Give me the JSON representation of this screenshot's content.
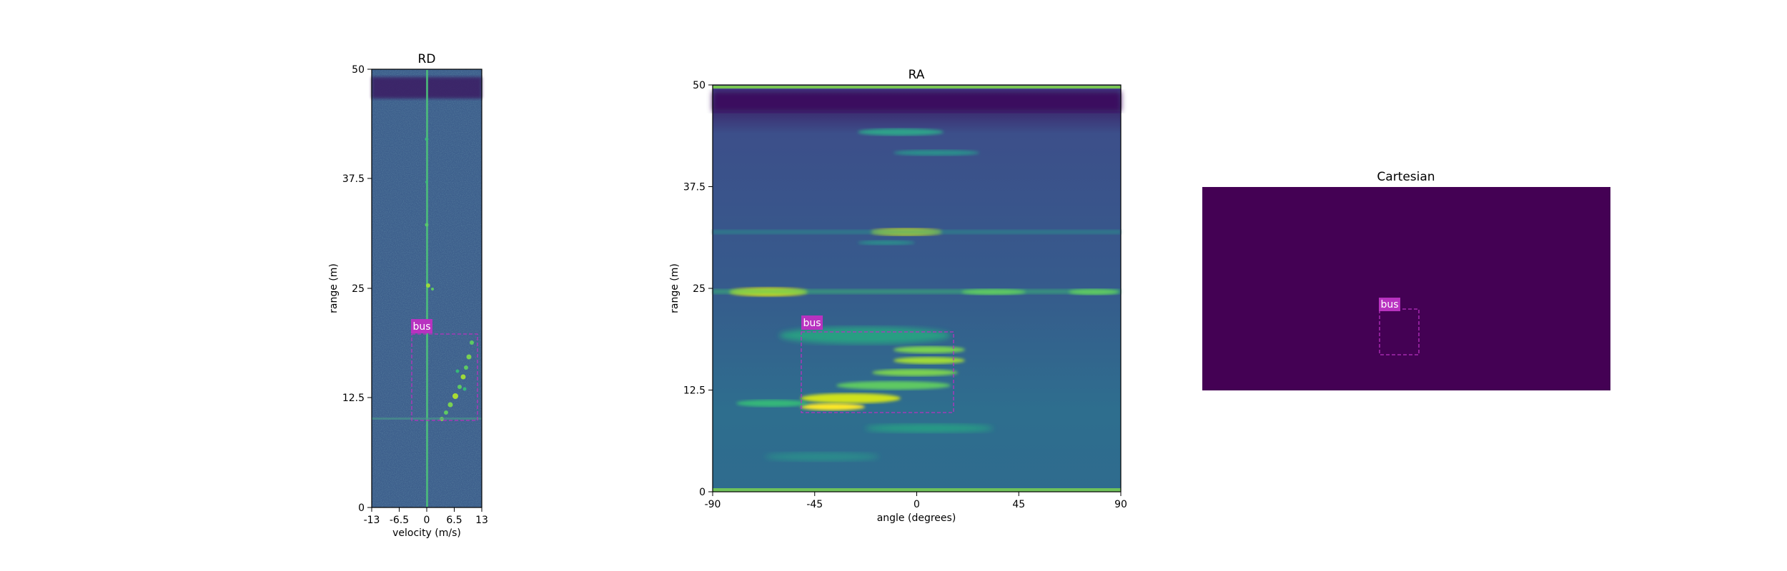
{
  "chart_data": [
    {
      "type": "heatmap",
      "title": "RD",
      "xlabel": "velocity (m/s)",
      "ylabel": "range (m)",
      "xlim": [
        -13,
        13
      ],
      "ylim": [
        0,
        50
      ],
      "xticks": [
        "-13",
        "-6.5",
        "0",
        "6.5",
        "13"
      ],
      "yticks": [
        "0",
        "12.5",
        "25",
        "37.5",
        "50"
      ],
      "colormap": "viridis",
      "annotations": [
        {
          "label": "bus",
          "x_range": [
            -3.9,
            12.0
          ],
          "y_range": [
            10.0,
            20.0
          ],
          "color": "#b832c0"
        }
      ]
    },
    {
      "type": "heatmap",
      "title": "RA",
      "xlabel": "angle (degrees)",
      "ylabel": "range (m)",
      "xlim": [
        -90,
        90
      ],
      "ylim": [
        0,
        50
      ],
      "xticks": [
        "-90",
        "-45",
        "0",
        "45",
        "90"
      ],
      "yticks": [
        "0",
        "12.5",
        "25",
        "37.5",
        "50"
      ],
      "colormap": "viridis",
      "annotations": [
        {
          "label": "bus",
          "x_range": [
            -51,
            16
          ],
          "y_range": [
            9.8,
            19.8
          ],
          "color": "#b832c0"
        }
      ]
    },
    {
      "type": "heatmap",
      "title": "Cartesian",
      "background": "#440154",
      "annotations": [
        {
          "label": "bus",
          "color": "#b832c0"
        }
      ]
    }
  ]
}
